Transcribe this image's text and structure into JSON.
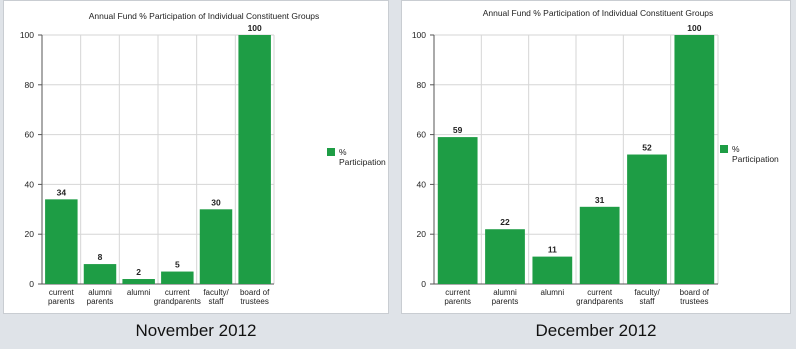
{
  "chart_data": [
    {
      "type": "bar",
      "title": "Annual Fund % Participation of Individual Constituent Groups",
      "categories": [
        [
          "current",
          "parents"
        ],
        [
          "alumni",
          "parents"
        ],
        [
          "alumni"
        ],
        [
          "current",
          "grandparents"
        ],
        [
          "faculty/",
          "staff"
        ],
        [
          "board of",
          "trustees"
        ]
      ],
      "series": [
        {
          "name": "% Participation",
          "values": [
            34,
            8,
            2,
            5,
            30,
            100
          ],
          "color": "#1e9d45"
        }
      ],
      "ylim": [
        0,
        100
      ],
      "yticks": [
        0,
        20,
        40,
        60,
        80,
        100
      ],
      "grid": true,
      "legend": "right",
      "caption": "November 2012"
    },
    {
      "type": "bar",
      "title": "Annual Fund % Participation of Individual Constituent Groups",
      "categories": [
        [
          "current",
          "parents"
        ],
        [
          "alumni",
          "parents"
        ],
        [
          "alumni"
        ],
        [
          "current",
          "grandparents"
        ],
        [
          "faculty/",
          "staff"
        ],
        [
          "board of",
          "trustees"
        ]
      ],
      "series": [
        {
          "name": "% Participation",
          "values": [
            59,
            22,
            11,
            31,
            52,
            100
          ],
          "color": "#1e9d45"
        }
      ],
      "ylim": [
        0,
        100
      ],
      "yticks": [
        0,
        20,
        40,
        60,
        80,
        100
      ],
      "grid": true,
      "legend": "right",
      "caption": "December 2012"
    }
  ]
}
